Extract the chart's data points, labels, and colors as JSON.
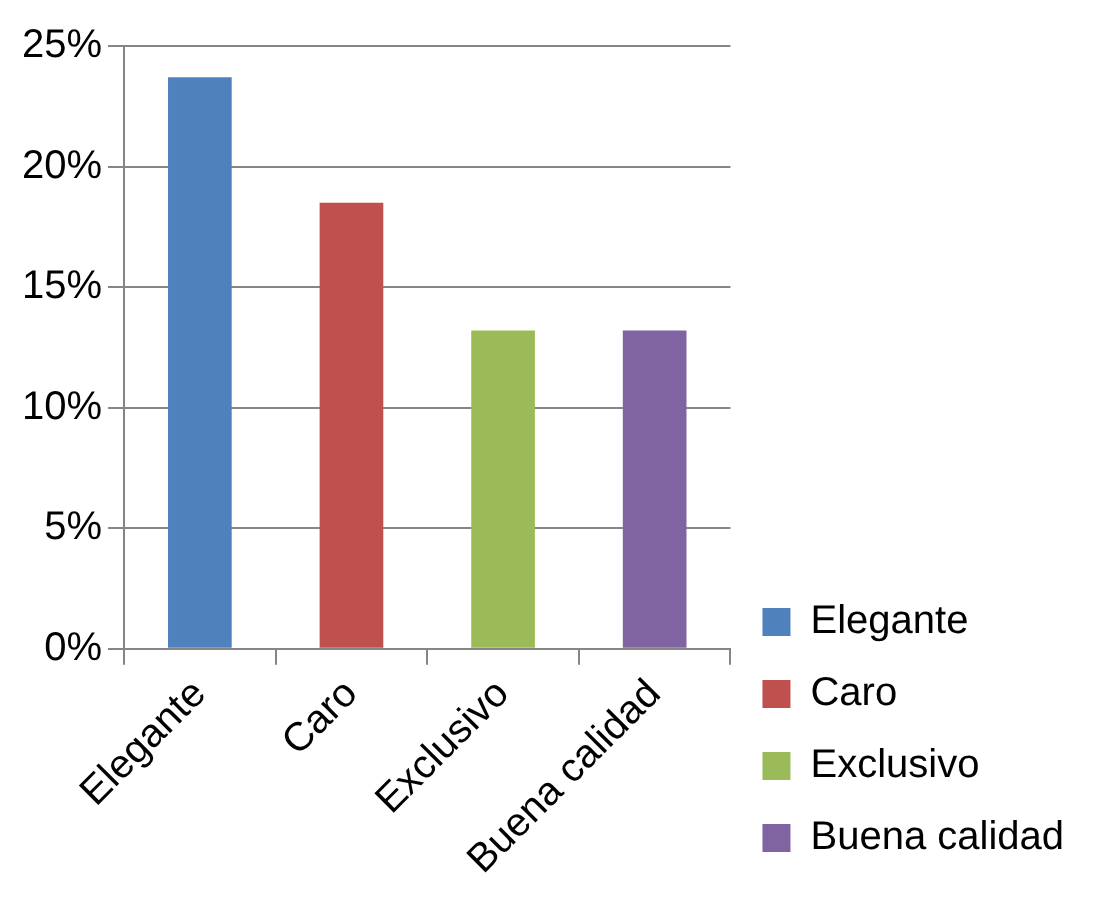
{
  "chart_data": {
    "type": "bar",
    "categories": [
      "Elegante",
      "Caro",
      "Exclusivo",
      "Buena calidad"
    ],
    "series": [
      {
        "name": "Elegante",
        "color": "#4f81bd",
        "values": [
          23.7,
          null,
          null,
          null
        ]
      },
      {
        "name": "Caro",
        "color": "#c0504d",
        "values": [
          null,
          18.5,
          null,
          null
        ]
      },
      {
        "name": "Exclusivo",
        "color": "#9bbb59",
        "values": [
          null,
          null,
          13.2,
          null
        ]
      },
      {
        "name": "Buena calidad",
        "color": "#8064a2",
        "values": [
          null,
          null,
          null,
          13.2
        ]
      }
    ],
    "ylim": [
      0,
      25
    ],
    "yticks": [
      {
        "value": 0,
        "label": "0%"
      },
      {
        "value": 5,
        "label": "5%"
      },
      {
        "value": 10,
        "label": "10%"
      },
      {
        "value": 15,
        "label": "15%"
      },
      {
        "value": 20,
        "label": "20%"
      },
      {
        "value": 25,
        "label": "25%"
      }
    ],
    "grid": "y",
    "legend": "right"
  }
}
